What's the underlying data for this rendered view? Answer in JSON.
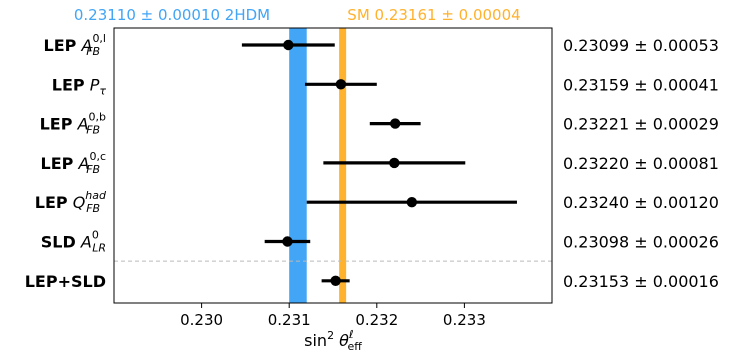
{
  "chart_data": {
    "type": "scatter",
    "xlabel": "sin² θ_eff^ℓ",
    "xlabel_parts": {
      "base": "sin",
      "exp": "2",
      "theta": "θ",
      "sub": "eff",
      "sup": "ℓ"
    },
    "xlim": [
      0.229,
      0.234
    ],
    "xticks": [
      0.23,
      0.231,
      0.232,
      0.233
    ],
    "xtick_labels": [
      "0.230",
      "0.231",
      "0.232",
      "0.233"
    ],
    "grid": false,
    "bands": [
      {
        "label": "0.23110 ± 0.00010 2HDM",
        "center": 0.2311,
        "halfwidth": 0.0001,
        "color": "#42a5f5"
      },
      {
        "label": "SM 0.23161 ± 0.00004",
        "center": 0.23161,
        "halfwidth": 4e-05,
        "color": "#ffb22e"
      }
    ],
    "measurements": [
      {
        "exp": "LEP",
        "sym": "A",
        "sub": "FB",
        "sup": "0,l",
        "value": 0.23099,
        "error": 0.00053,
        "value_label": "0.23099 ± 0.00053"
      },
      {
        "exp": "LEP",
        "sym": "P",
        "sub": "τ",
        "sup": "",
        "value": 0.23159,
        "error": 0.00041,
        "value_label": "0.23159 ± 0.00041"
      },
      {
        "exp": "LEP",
        "sym": "A",
        "sub": "FB",
        "sup": "0,b",
        "value": 0.23221,
        "error": 0.00029,
        "value_label": "0.23221 ± 0.00029"
      },
      {
        "exp": "LEP",
        "sym": "A",
        "sub": "FB",
        "sup": "0,c",
        "value": 0.2322,
        "error": 0.00081,
        "value_label": "0.23220 ± 0.00081"
      },
      {
        "exp": "LEP",
        "sym": "Q",
        "sub": "FB",
        "sup": "had",
        "value": 0.2324,
        "error": 0.0012,
        "value_label": "0.23240 ± 0.00120"
      },
      {
        "exp": "SLD",
        "sym": "A",
        "sub": "LR",
        "sup": "0",
        "value": 0.23098,
        "error": 0.00026,
        "value_label": "0.23098 ± 0.00026"
      },
      {
        "exp": "LEP+SLD",
        "sym": "",
        "sub": "",
        "sup": "",
        "value": 0.23153,
        "error": 0.00016,
        "value_label": "0.23153 ± 0.00016"
      }
    ],
    "separator": {
      "after_index": 5,
      "style": "dashed",
      "color": "#bbbbbb"
    },
    "colors": {
      "points": "#000000"
    }
  }
}
